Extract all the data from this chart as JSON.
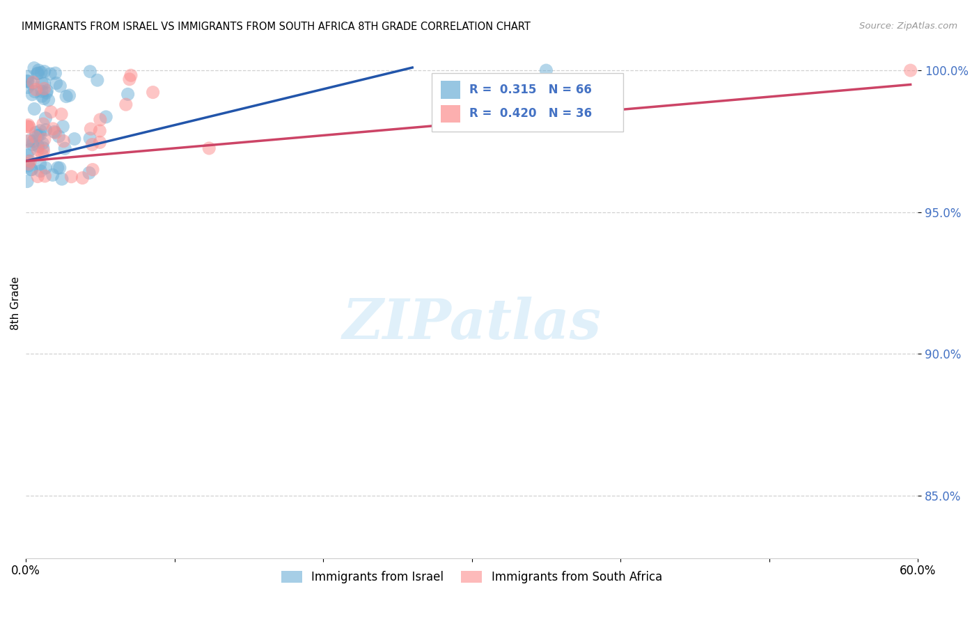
{
  "title": "IMMIGRANTS FROM ISRAEL VS IMMIGRANTS FROM SOUTH AFRICA 8TH GRADE CORRELATION CHART",
  "source": "Source: ZipAtlas.com",
  "ylabel": "8th Grade",
  "xlim": [
    0.0,
    0.6
  ],
  "ylim": [
    0.828,
    1.008
  ],
  "yticks": [
    0.85,
    0.9,
    0.95,
    1.0
  ],
  "ytick_labels": [
    "85.0%",
    "90.0%",
    "95.0%",
    "100.0%"
  ],
  "xticks": [
    0.0,
    0.1,
    0.2,
    0.3,
    0.4,
    0.5,
    0.6
  ],
  "xtick_labels": [
    "0.0%",
    "",
    "",
    "",
    "",
    "",
    "60.0%"
  ],
  "israel_color": "#6baed6",
  "south_africa_color": "#fc8d8d",
  "israel_line_color": "#2255aa",
  "sa_line_color": "#cc4466",
  "israel_R": 0.315,
  "israel_N": 66,
  "south_africa_R": 0.42,
  "south_africa_N": 36,
  "legend_label_israel": "Immigrants from Israel",
  "legend_label_sa": "Immigrants from South Africa",
  "background_color": "#ffffff",
  "grid_color": "#cccccc",
  "tick_color_y": "#4472c4",
  "watermark_color": "#d0e8f8"
}
